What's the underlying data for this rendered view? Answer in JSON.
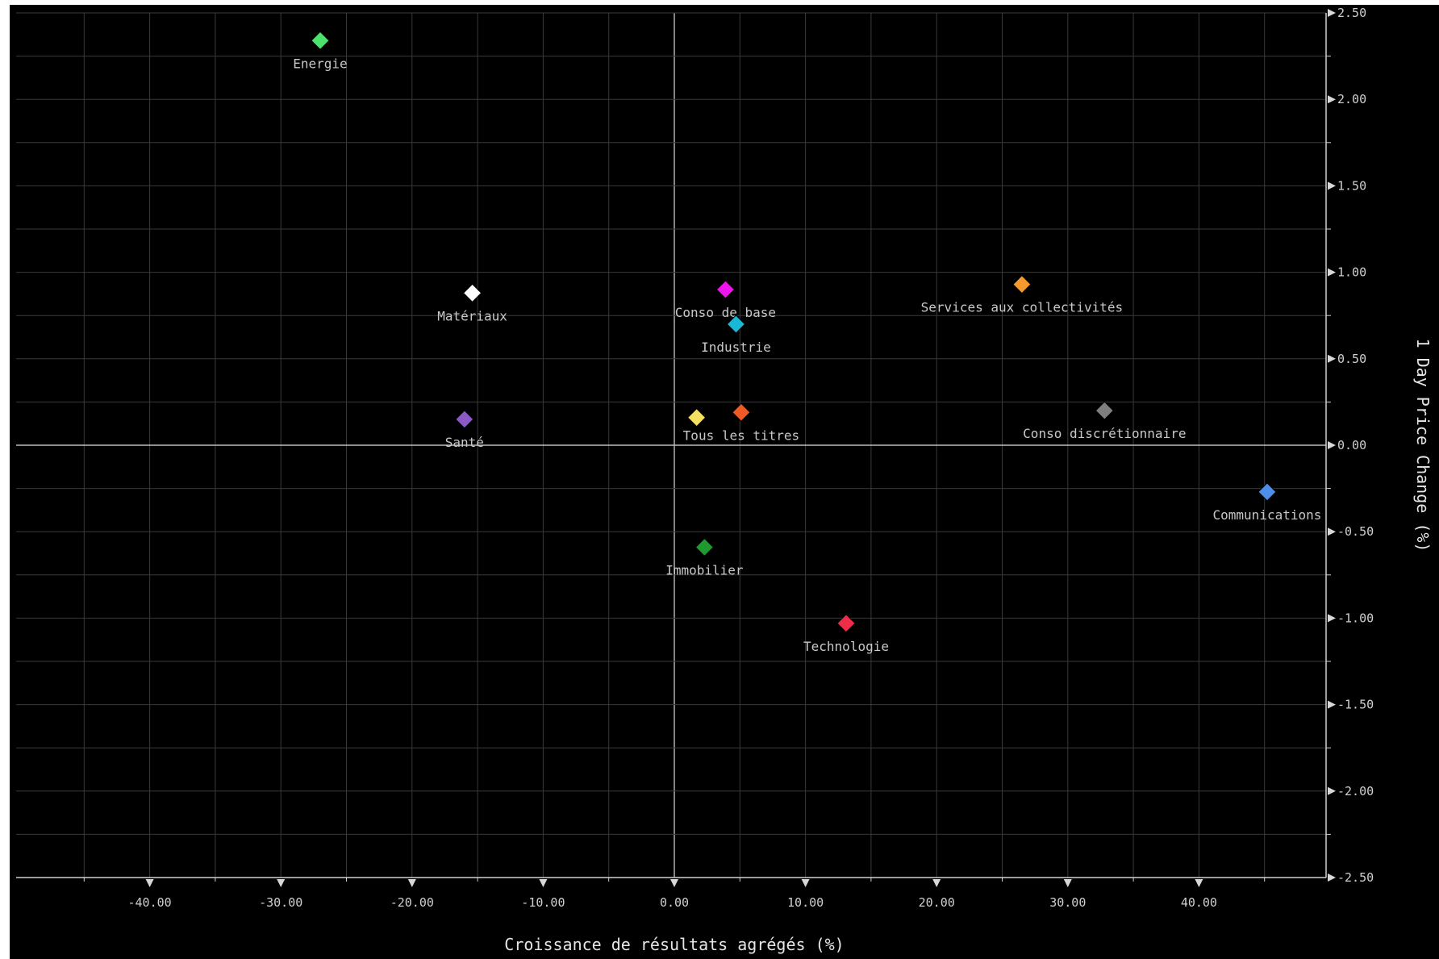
{
  "chart_data": {
    "type": "scatter",
    "xlabel": "Croissance de résultats agrégés (%)",
    "ylabel": "1 Day Price Change (%)",
    "xlim": [
      -50,
      50
    ],
    "ylim": [
      -2.5,
      2.5
    ],
    "x_ticks": [
      "-40.00",
      "-30.00",
      "-20.00",
      "-10.00",
      "0.00",
      "10.00",
      "20.00",
      "30.00",
      "40.00"
    ],
    "y_ticks": [
      "2.50",
      "2.00",
      "1.50",
      "1.00",
      "0.50",
      "0.00",
      "-0.50",
      "-1.00",
      "-1.50",
      "-2.00",
      "-2.50"
    ],
    "grid": true,
    "points": [
      {
        "label": "Energie",
        "x": -27.0,
        "y": 2.34,
        "color": "#4be36b"
      },
      {
        "label": "Matériaux",
        "x": -15.4,
        "y": 0.88,
        "color": "#ffffff"
      },
      {
        "label": "Conso de base",
        "x": 3.9,
        "y": 0.9,
        "color": "#ee14ee"
      },
      {
        "label": "Industrie",
        "x": 4.7,
        "y": 0.7,
        "color": "#19b8d6"
      },
      {
        "label": "Services aux collectivités",
        "x": 26.5,
        "y": 0.93,
        "color": "#f79a2d"
      },
      {
        "label": "Santé",
        "x": -16.0,
        "y": 0.15,
        "color": "#8a5ac7"
      },
      {
        "label": "",
        "x": 1.7,
        "y": 0.16,
        "color": "#f4e060"
      },
      {
        "label": "Tous les titres",
        "x": 5.1,
        "y": 0.19,
        "color": "#ef5a24"
      },
      {
        "label": "Conso discrétionnaire",
        "x": 32.8,
        "y": 0.2,
        "color": "#7f7f7f"
      },
      {
        "label": "Communications",
        "x": 45.2,
        "y": -0.27,
        "color": "#4d8ee8"
      },
      {
        "label": "Immobilier",
        "x": 2.3,
        "y": -0.59,
        "color": "#1f9a2e"
      },
      {
        "label": "Technologie",
        "x": 13.1,
        "y": -1.03,
        "color": "#ef2d48"
      }
    ]
  }
}
